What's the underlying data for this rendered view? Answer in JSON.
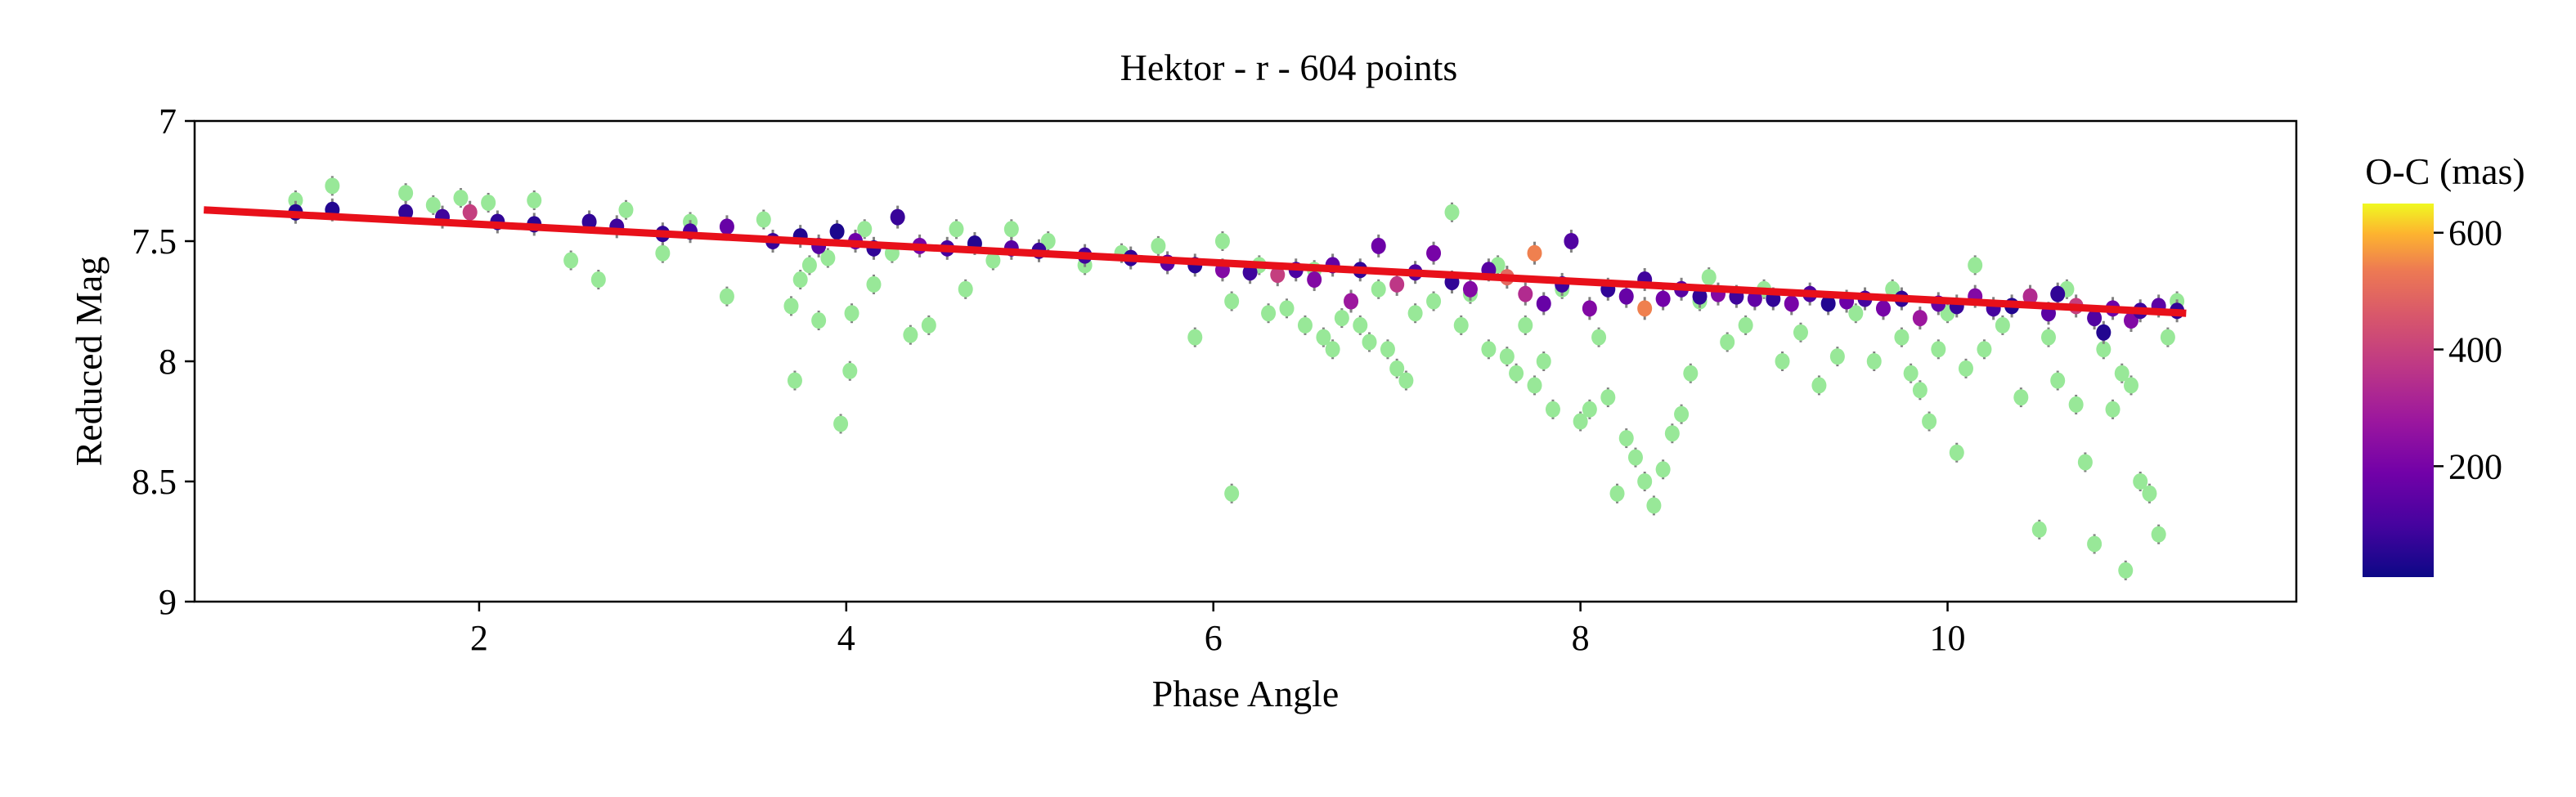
{
  "chart_data": {
    "type": "scatter",
    "title": "Hektor - r - 604 points",
    "xlabel": "Phase Angle",
    "ylabel": "Reduced Mag",
    "xlim": [
      0.45,
      11.9
    ],
    "ylim": [
      9.0,
      7.0
    ],
    "y_inverted": true,
    "xticks": [
      2,
      4,
      6,
      8,
      10
    ],
    "xtick_labels": [
      "2",
      "4",
      "6",
      "8",
      "10"
    ],
    "yticks": [
      7,
      7.5,
      8,
      8.5,
      9
    ],
    "ytick_labels": [
      "7",
      "7.5",
      "8",
      "8.5",
      "9"
    ],
    "grid": false,
    "colorbar": {
      "label": "O-C (mas)",
      "range": [
        10,
        650
      ],
      "colormap": "plasma",
      "ticks": [
        200,
        400,
        600
      ],
      "tick_labels": [
        "200",
        "400",
        "600"
      ]
    },
    "fit_line": {
      "color": "#e8101a",
      "x": [
        0.5,
        11.3
      ],
      "y": [
        7.37,
        7.8
      ]
    },
    "outlier_color": "#98e898",
    "error_bar_color": "#808080",
    "series": [
      {
        "kind": "outliers",
        "points": [
          [
            1.0,
            7.33
          ],
          [
            1.2,
            7.27
          ],
          [
            1.6,
            7.3
          ],
          [
            1.75,
            7.35
          ],
          [
            1.9,
            7.32
          ],
          [
            2.05,
            7.34
          ],
          [
            2.3,
            7.33
          ],
          [
            2.5,
            7.58
          ],
          [
            2.65,
            7.66
          ],
          [
            2.8,
            7.37
          ],
          [
            3.0,
            7.55
          ],
          [
            3.15,
            7.42
          ],
          [
            3.35,
            7.73
          ],
          [
            3.55,
            7.41
          ],
          [
            3.7,
            7.77
          ],
          [
            3.72,
            8.08
          ],
          [
            3.75,
            7.66
          ],
          [
            3.8,
            7.6
          ],
          [
            3.85,
            7.83
          ],
          [
            3.9,
            7.57
          ],
          [
            3.97,
            8.26
          ],
          [
            4.02,
            8.04
          ],
          [
            4.03,
            7.8
          ],
          [
            4.1,
            7.45
          ],
          [
            4.15,
            7.68
          ],
          [
            4.25,
            7.55
          ],
          [
            4.35,
            7.89
          ],
          [
            4.45,
            7.85
          ],
          [
            4.6,
            7.45
          ],
          [
            4.65,
            7.7
          ],
          [
            4.8,
            7.58
          ],
          [
            4.9,
            7.45
          ],
          [
            5.1,
            7.5
          ],
          [
            5.3,
            7.6
          ],
          [
            5.5,
            7.55
          ],
          [
            5.7,
            7.52
          ],
          [
            5.9,
            7.9
          ],
          [
            6.05,
            7.5
          ],
          [
            6.1,
            7.75
          ],
          [
            6.1,
            8.55
          ],
          [
            6.25,
            7.6
          ],
          [
            6.3,
            7.8
          ],
          [
            6.4,
            7.78
          ],
          [
            6.5,
            7.85
          ],
          [
            6.55,
            7.62
          ],
          [
            6.6,
            7.9
          ],
          [
            6.65,
            7.95
          ],
          [
            6.7,
            7.82
          ],
          [
            6.75,
            7.75
          ],
          [
            6.8,
            7.85
          ],
          [
            6.85,
            7.92
          ],
          [
            6.9,
            7.7
          ],
          [
            6.95,
            7.95
          ],
          [
            7.0,
            8.03
          ],
          [
            7.05,
            8.08
          ],
          [
            7.1,
            7.8
          ],
          [
            7.2,
            7.75
          ],
          [
            7.3,
            7.38
          ],
          [
            7.35,
            7.85
          ],
          [
            7.4,
            7.72
          ],
          [
            7.5,
            7.95
          ],
          [
            7.55,
            7.6
          ],
          [
            7.6,
            7.98
          ],
          [
            7.65,
            8.05
          ],
          [
            7.7,
            7.85
          ],
          [
            7.75,
            8.1
          ],
          [
            7.8,
            8.0
          ],
          [
            7.85,
            8.2
          ],
          [
            7.9,
            7.7
          ],
          [
            8.0,
            8.25
          ],
          [
            8.05,
            8.2
          ],
          [
            8.1,
            7.9
          ],
          [
            8.15,
            8.15
          ],
          [
            8.2,
            8.55
          ],
          [
            8.25,
            8.32
          ],
          [
            8.3,
            8.4
          ],
          [
            8.35,
            8.5
          ],
          [
            8.4,
            8.6
          ],
          [
            8.45,
            8.45
          ],
          [
            8.5,
            8.3
          ],
          [
            8.55,
            8.22
          ],
          [
            8.6,
            8.05
          ],
          [
            8.65,
            7.75
          ],
          [
            8.7,
            7.65
          ],
          [
            8.8,
            7.92
          ],
          [
            8.9,
            7.85
          ],
          [
            9.0,
            7.7
          ],
          [
            9.1,
            8.0
          ],
          [
            9.2,
            7.88
          ],
          [
            9.3,
            8.1
          ],
          [
            9.4,
            7.98
          ],
          [
            9.5,
            7.8
          ],
          [
            9.6,
            8.0
          ],
          [
            9.7,
            7.7
          ],
          [
            9.75,
            7.9
          ],
          [
            9.8,
            8.05
          ],
          [
            9.85,
            8.12
          ],
          [
            9.9,
            8.25
          ],
          [
            9.95,
            7.95
          ],
          [
            10.0,
            7.8
          ],
          [
            10.05,
            8.38
          ],
          [
            10.1,
            8.03
          ],
          [
            10.15,
            7.6
          ],
          [
            10.2,
            7.95
          ],
          [
            10.3,
            7.85
          ],
          [
            10.4,
            8.15
          ],
          [
            10.5,
            8.7
          ],
          [
            10.55,
            7.9
          ],
          [
            10.6,
            8.08
          ],
          [
            10.65,
            7.7
          ],
          [
            10.7,
            8.18
          ],
          [
            10.75,
            8.42
          ],
          [
            10.8,
            8.76
          ],
          [
            10.85,
            7.95
          ],
          [
            10.9,
            8.2
          ],
          [
            10.95,
            8.05
          ],
          [
            10.97,
            8.87
          ],
          [
            11.0,
            8.1
          ],
          [
            11.05,
            8.5
          ],
          [
            11.1,
            8.55
          ],
          [
            11.15,
            8.72
          ],
          [
            11.2,
            7.9
          ],
          [
            11.25,
            7.75
          ]
        ]
      },
      {
        "kind": "measurements",
        "points": [
          [
            1.0,
            7.38,
            40
          ],
          [
            1.2,
            7.37,
            40
          ],
          [
            1.6,
            7.38,
            60
          ],
          [
            1.8,
            7.4,
            80
          ],
          [
            1.95,
            7.38,
            350
          ],
          [
            2.1,
            7.42,
            60
          ],
          [
            2.3,
            7.43,
            50
          ],
          [
            2.6,
            7.42,
            60
          ],
          [
            2.75,
            7.44,
            80
          ],
          [
            3.0,
            7.47,
            60
          ],
          [
            3.15,
            7.46,
            90
          ],
          [
            3.35,
            7.44,
            150
          ],
          [
            3.6,
            7.5,
            70
          ],
          [
            3.75,
            7.48,
            40
          ],
          [
            3.85,
            7.52,
            120
          ],
          [
            3.95,
            7.46,
            30
          ],
          [
            4.05,
            7.5,
            160
          ],
          [
            4.15,
            7.53,
            60
          ],
          [
            4.28,
            7.4,
            70
          ],
          [
            4.4,
            7.52,
            180
          ],
          [
            4.55,
            7.53,
            90
          ],
          [
            4.7,
            7.51,
            40
          ],
          [
            4.9,
            7.53,
            120
          ],
          [
            5.05,
            7.54,
            70
          ],
          [
            5.3,
            7.56,
            80
          ],
          [
            5.55,
            7.57,
            60
          ],
          [
            5.75,
            7.59,
            120
          ],
          [
            5.9,
            7.6,
            50
          ],
          [
            6.05,
            7.62,
            200
          ],
          [
            6.2,
            7.63,
            80
          ],
          [
            6.35,
            7.64,
            350
          ],
          [
            6.45,
            7.62,
            100
          ],
          [
            6.55,
            7.66,
            200
          ],
          [
            6.65,
            7.6,
            140
          ],
          [
            6.75,
            7.75,
            250
          ],
          [
            6.8,
            7.62,
            60
          ],
          [
            6.9,
            7.52,
            160
          ],
          [
            7.0,
            7.68,
            330
          ],
          [
            7.1,
            7.63,
            100
          ],
          [
            7.2,
            7.55,
            180
          ],
          [
            7.3,
            7.67,
            60
          ],
          [
            7.4,
            7.7,
            200
          ],
          [
            7.5,
            7.62,
            120
          ],
          [
            7.6,
            7.65,
            450
          ],
          [
            7.7,
            7.72,
            300
          ],
          [
            7.75,
            7.55,
            500
          ],
          [
            7.8,
            7.76,
            150
          ],
          [
            7.9,
            7.68,
            80
          ],
          [
            7.95,
            7.5,
            110
          ],
          [
            8.05,
            7.78,
            200
          ],
          [
            8.15,
            7.7,
            60
          ],
          [
            8.25,
            7.73,
            150
          ],
          [
            8.35,
            7.66,
            80
          ],
          [
            8.35,
            7.78,
            500
          ],
          [
            8.45,
            7.74,
            170
          ],
          [
            8.55,
            7.7,
            120
          ],
          [
            8.65,
            7.73,
            60
          ],
          [
            8.75,
            7.72,
            200
          ],
          [
            8.85,
            7.73,
            80
          ],
          [
            8.95,
            7.74,
            140
          ],
          [
            9.05,
            7.74,
            60
          ],
          [
            9.15,
            7.76,
            180
          ],
          [
            9.25,
            7.72,
            100
          ],
          [
            9.35,
            7.76,
            40
          ],
          [
            9.45,
            7.75,
            160
          ],
          [
            9.55,
            7.74,
            90
          ],
          [
            9.65,
            7.78,
            180
          ],
          [
            9.75,
            7.74,
            60
          ],
          [
            9.85,
            7.82,
            250
          ],
          [
            9.95,
            7.76,
            140
          ],
          [
            10.05,
            7.77,
            70
          ],
          [
            10.15,
            7.73,
            200
          ],
          [
            10.25,
            7.78,
            90
          ],
          [
            10.35,
            7.77,
            40
          ],
          [
            10.45,
            7.73,
            300
          ],
          [
            10.55,
            7.8,
            130
          ],
          [
            10.6,
            7.72,
            60
          ],
          [
            10.7,
            7.77,
            350
          ],
          [
            10.8,
            7.82,
            110
          ],
          [
            10.85,
            7.88,
            40
          ],
          [
            10.9,
            7.78,
            160
          ],
          [
            11.0,
            7.83,
            200
          ],
          [
            11.05,
            7.79,
            80
          ],
          [
            11.15,
            7.77,
            130
          ],
          [
            11.25,
            7.79,
            60
          ]
        ]
      }
    ]
  }
}
